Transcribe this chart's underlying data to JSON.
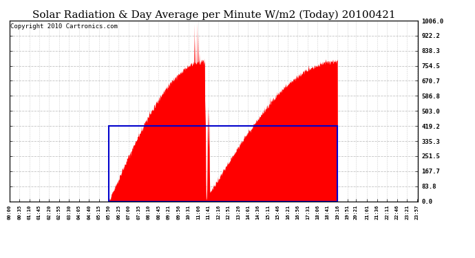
{
  "title": "Solar Radiation & Day Average per Minute W/m2 (Today) 20100421",
  "copyright": "Copyright 2010 Cartronics.com",
  "ylim": [
    0.0,
    1006.0
  ],
  "yticks": [
    0.0,
    83.8,
    167.7,
    251.5,
    335.3,
    419.2,
    503.0,
    586.8,
    670.7,
    754.5,
    838.3,
    922.2,
    1006.0
  ],
  "xtick_labels": [
    "00:00",
    "00:35",
    "01:10",
    "01:45",
    "02:20",
    "02:55",
    "03:30",
    "04:05",
    "04:40",
    "05:15",
    "05:50",
    "06:25",
    "07:00",
    "07:35",
    "08:10",
    "08:45",
    "09:21",
    "09:56",
    "10:31",
    "11:06",
    "11:41",
    "12:16",
    "12:51",
    "13:26",
    "14:01",
    "14:36",
    "15:11",
    "15:46",
    "16:21",
    "16:56",
    "17:31",
    "18:06",
    "18:41",
    "19:16",
    "19:51",
    "20:21",
    "21:01",
    "21:36",
    "22:11",
    "22:46",
    "23:21",
    "23:57"
  ],
  "fill_color": "#FF0000",
  "box_color": "#0000CC",
  "background_color": "#FFFFFF",
  "grid_color": "#BBBBBB",
  "title_fontsize": 11,
  "copyright_fontsize": 6.5,
  "day_average": 419.2,
  "box_start_label": "05:50",
  "box_end_label": "19:16",
  "sunrise_min": 350,
  "sunset_min": 1156
}
